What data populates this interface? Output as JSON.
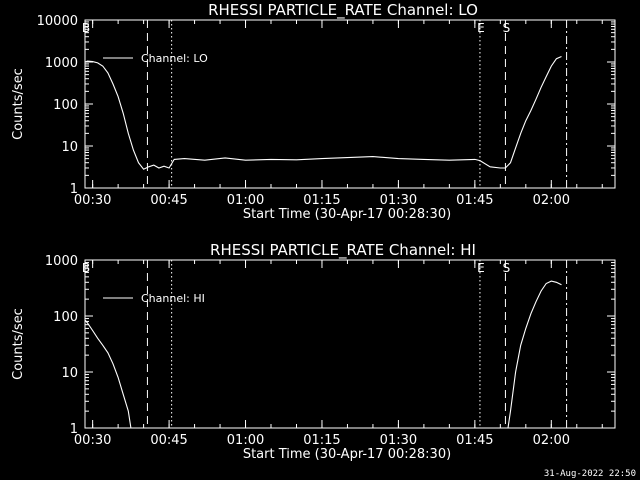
{
  "chart_data": [
    {
      "type": "line",
      "title": "RHESSI PARTICLE_RATE Channel: LO",
      "xlabel": "Start Time (30-Apr-17 00:28:30)",
      "ylabel": "Counts/sec",
      "yscale": "log",
      "ylim": [
        1,
        10000
      ],
      "xlim_minutes": [
        0,
        104
      ],
      "xtick_labels": [
        "00:30",
        "00:45",
        "01:00",
        "01:15",
        "01:30",
        "01:45",
        "02:00"
      ],
      "ytick_labels": [
        "1",
        "10",
        "100",
        "1000",
        "10000"
      ],
      "legend": {
        "label": "Channel: LO",
        "placement": "top-left"
      },
      "markers": [
        {
          "label": "B",
          "time": "00:28:30",
          "style": "solid"
        },
        {
          "label": "",
          "time": "00:40:45",
          "style": "dashed"
        },
        {
          "label": "",
          "time": "00:45:30",
          "style": "dotted"
        },
        {
          "label": "E",
          "time": "01:46:00",
          "style": "dotted"
        },
        {
          "label": "S",
          "time": "01:51:00",
          "style": "dashed"
        },
        {
          "label": "",
          "time": "02:03:00",
          "style": "dashdot"
        }
      ],
      "series": [
        {
          "x": [
            "00:28:30",
            "00:29:00",
            "00:30:00",
            "00:31:00",
            "00:32:00",
            "00:33:00",
            "00:34:00",
            "00:35:00",
            "00:36:00",
            "00:37:00",
            "00:38:00",
            "00:39:00",
            "00:40:00",
            "00:40:30",
            "00:41:00",
            "00:42:00",
            "00:43:00",
            "00:44:00",
            "00:45:00",
            "00:46:00",
            "00:48:00",
            "00:52:00",
            "00:56:00",
            "01:00:00",
            "01:05:00",
            "01:10:00",
            "01:15:00",
            "01:20:00",
            "01:25:00",
            "01:30:00",
            "01:35:00",
            "01:40:00",
            "01:45:00",
            "01:46:00",
            "01:48:00",
            "01:50:00",
            "01:51:00",
            "01:52:00",
            "01:53:00",
            "01:54:00",
            "01:55:00",
            "01:56:00",
            "01:57:00",
            "01:58:00",
            "01:59:00",
            "02:00:00",
            "02:01:00",
            "02:02:00"
          ],
          "y": [
            1000,
            1050,
            1020,
            950,
            800,
            550,
            300,
            150,
            60,
            20,
            8,
            4,
            2.8,
            3,
            3.2,
            3.5,
            3,
            3.3,
            3,
            4.8,
            5,
            4.6,
            5.2,
            4.6,
            4.8,
            4.7,
            5,
            5.3,
            5.6,
            5,
            4.8,
            4.6,
            4.8,
            4.5,
            3.2,
            3,
            3,
            4,
            9,
            20,
            40,
            70,
            130,
            250,
            450,
            800,
            1200,
            1350
          ]
        }
      ]
    },
    {
      "type": "line",
      "title": "RHESSI PARTICLE_RATE Channel: HI",
      "xlabel": "Start Time (30-Apr-17 00:28:30)",
      "ylabel": "Counts/sec",
      "yscale": "log",
      "ylim": [
        1,
        1000
      ],
      "xlim_minutes": [
        0,
        104
      ],
      "xtick_labels": [
        "00:30",
        "00:45",
        "01:00",
        "01:15",
        "01:30",
        "01:45",
        "02:00"
      ],
      "ytick_labels": [
        "1",
        "10",
        "100",
        "1000"
      ],
      "legend": {
        "label": "Channel: HI",
        "placement": "top-left"
      },
      "markers": [
        {
          "label": "B",
          "time": "00:28:30",
          "style": "solid"
        },
        {
          "label": "",
          "time": "00:40:45",
          "style": "dashed"
        },
        {
          "label": "",
          "time": "00:45:30",
          "style": "dotted"
        },
        {
          "label": "E",
          "time": "01:46:00",
          "style": "dotted"
        },
        {
          "label": "S",
          "time": "01:51:00",
          "style": "dashed"
        },
        {
          "label": "",
          "time": "02:03:00",
          "style": "dashdot"
        }
      ],
      "series": [
        {
          "x": [
            "00:28:30",
            "00:29:00",
            "00:30:00",
            "00:31:00",
            "00:32:00",
            "00:33:00",
            "00:34:00",
            "00:35:00",
            "00:36:00",
            "00:37:00",
            "00:37:30",
            "01:51:30",
            "01:52:00",
            "01:53:00",
            "01:54:00",
            "01:55:00",
            "01:56:00",
            "01:57:00",
            "01:58:00",
            "01:59:00",
            "02:00:00",
            "02:01:00",
            "02:02:00"
          ],
          "y": [
            85,
            75,
            55,
            40,
            30,
            22,
            14,
            8,
            4,
            2,
            1,
            1,
            2,
            10,
            30,
            60,
            110,
            180,
            280,
            380,
            420,
            400,
            360
          ]
        }
      ]
    }
  ],
  "timestamp": "31-Aug-2022 22:50"
}
